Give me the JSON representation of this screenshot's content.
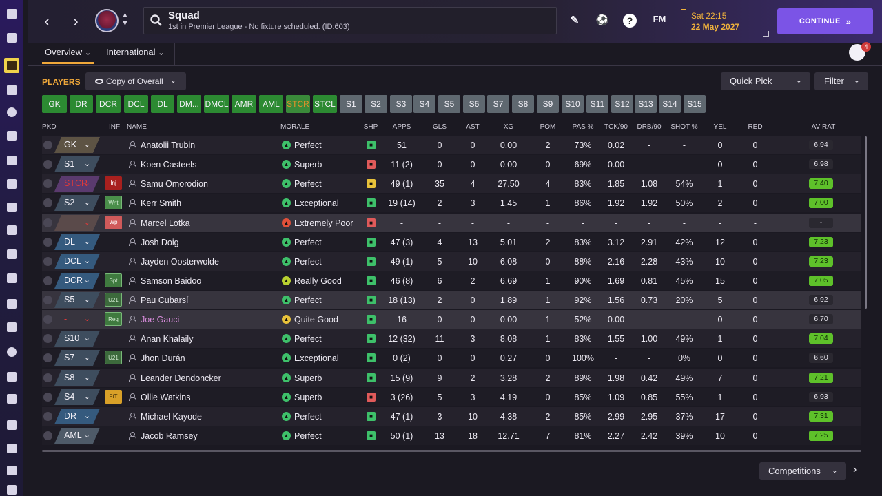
{
  "header": {
    "title": "Squad",
    "subtitle": "1st in Premier League - No fixture scheduled. (ID:603)",
    "fm_label": "FM",
    "help_label": "?",
    "date_day": "Sat 22:15",
    "date_date": "22 May 2027",
    "continue_label": "CONTINUE",
    "continue_chevron": "»",
    "back_arrow": "‹",
    "forward_arrow": "›",
    "badge_arrows": "⌃⌄"
  },
  "subtabs": [
    {
      "label": "Overview",
      "chevron": "⌄"
    },
    {
      "label": "International",
      "chevron": "⌄"
    }
  ],
  "notifications": {
    "count": "4"
  },
  "panel": {
    "players_label": "PLAYERS",
    "view_label": "Copy of Overall",
    "quick_pick_label": "Quick Pick",
    "filter_label": "Filter",
    "competitions_label": "Competitions",
    "chevron": "⌄",
    "next_arrow": "›"
  },
  "position_buttons": [
    {
      "label": "GK",
      "style": "green"
    },
    {
      "label": "DR",
      "style": "green"
    },
    {
      "label": "DCR",
      "style": "green"
    },
    {
      "label": "DCL",
      "style": "green"
    },
    {
      "label": "DL",
      "style": "green"
    },
    {
      "label": "DM...",
      "style": "green"
    },
    {
      "label": "DMCL",
      "style": "green"
    },
    {
      "label": "AMR",
      "style": "green"
    },
    {
      "label": "AML",
      "style": "green"
    },
    {
      "label": "STCR",
      "style": "sel"
    },
    {
      "label": "STCL",
      "style": "green"
    },
    {
      "label": "S1",
      "style": "grey"
    },
    {
      "label": "S2",
      "style": "grey"
    },
    {
      "label": "S3",
      "style": "grey"
    },
    {
      "label": "S4",
      "style": "grey"
    },
    {
      "label": "S5",
      "style": "grey"
    },
    {
      "label": "S6",
      "style": "grey"
    },
    {
      "label": "S7",
      "style": "grey"
    },
    {
      "label": "S8",
      "style": "grey"
    },
    {
      "label": "S9",
      "style": "grey"
    },
    {
      "label": "S10",
      "style": "grey"
    },
    {
      "label": "S11",
      "style": "grey"
    },
    {
      "label": "S12",
      "style": "grey"
    },
    {
      "label": "S13",
      "style": "grey"
    },
    {
      "label": "S14",
      "style": "grey"
    },
    {
      "label": "S15",
      "style": "grey"
    }
  ],
  "columns": {
    "pkd": "PKD",
    "inf": "INF",
    "name": "NAME",
    "morale": "MORALE",
    "shp": "SHP",
    "apps": "APPS",
    "gls": "GLS",
    "ast": "AST",
    "xg": "XG",
    "pom": "POM",
    "pas": "PAS %",
    "tck": "TCK/90",
    "drb": "DRB/90",
    "shot": "SHOT %",
    "yel": "YEL",
    "red": "RED",
    "avrat": "AV RAT"
  },
  "colors": {
    "accent_orange": "#f0a83a",
    "continue_purple": "#7b54e6",
    "rating_green": "#5ec12a",
    "morale_green": "#3ec06a",
    "injury_red": "#a8201e"
  },
  "players": [
    {
      "pos": "GK",
      "pos_style": "gk",
      "inf": "",
      "name": "Anatolii Trubin",
      "morale": "Perfect",
      "morale_color": "#3ec06a",
      "shp_color": "#3ec06a",
      "apps": "51",
      "gls": "0",
      "ast": "0",
      "xg": "0.00",
      "pom": "2",
      "pas": "73%",
      "tck": "0.02",
      "drb": "-",
      "shot": "-",
      "yel": "0",
      "red": "0",
      "rating": "6.94",
      "rating_style": "dark"
    },
    {
      "pos": "S1",
      "pos_style": "mid",
      "inf": "",
      "name": "Koen Casteels",
      "morale": "Superb",
      "morale_color": "#3ec06a",
      "shp_color": "#e05a5a",
      "apps": "11 (2)",
      "gls": "0",
      "ast": "0",
      "xg": "0.00",
      "pom": "0",
      "pas": "69%",
      "tck": "0.00",
      "drb": "-",
      "shot": "-",
      "yel": "0",
      "red": "0",
      "rating": "6.98",
      "rating_style": "dark"
    },
    {
      "pos": "STCR",
      "pos_style": "red",
      "inf": "Inj",
      "inf_style": "inj",
      "name": "Samu Omorodion",
      "morale": "Perfect",
      "morale_color": "#3ec06a",
      "shp_color": "#e8c23a",
      "apps": "49 (1)",
      "gls": "35",
      "ast": "4",
      "xg": "27.50",
      "pom": "4",
      "pas": "83%",
      "tck": "1.85",
      "drb": "1.08",
      "shot": "54%",
      "yel": "1",
      "red": "0",
      "rating": "7.40",
      "rating_style": "green"
    },
    {
      "pos": "S2",
      "pos_style": "mid",
      "inf": "Wnt",
      "inf_style": "wnt",
      "name": "Kerr Smith",
      "morale": "Exceptional",
      "morale_color": "#3ec06a",
      "shp_color": "#3ec06a",
      "apps": "19 (14)",
      "gls": "2",
      "ast": "3",
      "xg": "1.45",
      "pom": "1",
      "pas": "86%",
      "tck": "1.92",
      "drb": "1.92",
      "shot": "50%",
      "yel": "2",
      "red": "0",
      "rating": "7.00",
      "rating_style": "green"
    },
    {
      "pos": "-",
      "pos_style": "none",
      "inf": "Wp",
      "inf_style": "wp",
      "name": "Marcel Lotka",
      "morale": "Extremely Poor",
      "morale_color": "#e0503a",
      "shp_color": "#e05a5a",
      "apps": "-",
      "gls": "-",
      "ast": "-",
      "xg": "-",
      "pom": "-",
      "pas": "-",
      "tck": "-",
      "drb": "-",
      "shot": "-",
      "yel": "-",
      "red": "-",
      "rating": "-",
      "rating_style": "dark",
      "row_style": "hl"
    },
    {
      "pos": "DL",
      "pos_style": "def",
      "inf": "",
      "name": "Josh Doig",
      "morale": "Perfect",
      "morale_color": "#3ec06a",
      "shp_color": "#3ec06a",
      "apps": "47 (3)",
      "gls": "4",
      "ast": "13",
      "xg": "5.01",
      "pom": "2",
      "pas": "83%",
      "tck": "3.12",
      "drb": "2.91",
      "shot": "42%",
      "yel": "12",
      "red": "0",
      "rating": "7.23",
      "rating_style": "green"
    },
    {
      "pos": "DCL",
      "pos_style": "def",
      "inf": "",
      "name": "Jayden Oosterwolde",
      "morale": "Perfect",
      "morale_color": "#3ec06a",
      "shp_color": "#3ec06a",
      "apps": "49 (1)",
      "gls": "5",
      "ast": "10",
      "xg": "6.08",
      "pom": "0",
      "pas": "88%",
      "tck": "2.16",
      "drb": "2.28",
      "shot": "43%",
      "yel": "10",
      "red": "0",
      "rating": "7.23",
      "rating_style": "green"
    },
    {
      "pos": "DCR",
      "pos_style": "def",
      "inf": "Spt",
      "inf_style": "spt",
      "name": "Samson Baidoo",
      "morale": "Really Good",
      "morale_color": "#b8d030",
      "shp_color": "#3ec06a",
      "apps": "46 (8)",
      "gls": "6",
      "ast": "2",
      "xg": "6.69",
      "pom": "1",
      "pas": "90%",
      "tck": "1.69",
      "drb": "0.81",
      "shot": "45%",
      "yel": "15",
      "red": "0",
      "rating": "7.05",
      "rating_style": "green"
    },
    {
      "pos": "S5",
      "pos_style": "mid",
      "inf": "U21",
      "inf_style": "u21",
      "name": "Pau Cubarsí",
      "morale": "Perfect",
      "morale_color": "#3ec06a",
      "shp_color": "#3ec06a",
      "apps": "18 (13)",
      "gls": "2",
      "ast": "0",
      "xg": "1.89",
      "pom": "1",
      "pas": "92%",
      "tck": "1.56",
      "drb": "0.73",
      "shot": "20%",
      "yel": "5",
      "red": "0",
      "rating": "6.92",
      "rating_style": "dark",
      "row_style": "hl"
    },
    {
      "pos": "-",
      "pos_style": "none2",
      "inf": "Req",
      "inf_style": "req",
      "name": "Joe Gauci",
      "name_color": "#d48ad8",
      "morale": "Quite Good",
      "morale_color": "#e8c23a",
      "shp_color": "#3ec06a",
      "apps": "16",
      "gls": "0",
      "ast": "0",
      "xg": "0.00",
      "pom": "1",
      "pas": "52%",
      "tck": "0.00",
      "drb": "-",
      "shot": "-",
      "yel": "0",
      "red": "0",
      "rating": "6.70",
      "rating_style": "dark",
      "row_style": "hl"
    },
    {
      "pos": "S10",
      "pos_style": "mid",
      "inf": "",
      "name": "Anan Khalaily",
      "morale": "Perfect",
      "morale_color": "#3ec06a",
      "shp_color": "#3ec06a",
      "apps": "12 (32)",
      "gls": "11",
      "ast": "3",
      "xg": "8.08",
      "pom": "1",
      "pas": "83%",
      "tck": "1.55",
      "drb": "1.00",
      "shot": "49%",
      "yel": "1",
      "red": "0",
      "rating": "7.04",
      "rating_style": "green"
    },
    {
      "pos": "S7",
      "pos_style": "mid",
      "inf": "U21",
      "inf_style": "u21",
      "name": "Jhon Durán",
      "morale": "Exceptional",
      "morale_color": "#3ec06a",
      "shp_color": "#3ec06a",
      "apps": "0 (2)",
      "gls": "0",
      "ast": "0",
      "xg": "0.27",
      "pom": "0",
      "pas": "100%",
      "tck": "-",
      "drb": "-",
      "shot": "0%",
      "yel": "0",
      "red": "0",
      "rating": "6.60",
      "rating_style": "dark"
    },
    {
      "pos": "S8",
      "pos_style": "mid",
      "inf": "",
      "name": "Leander Dendoncker",
      "morale": "Superb",
      "morale_color": "#3ec06a",
      "shp_color": "#3ec06a",
      "apps": "15 (9)",
      "gls": "9",
      "ast": "2",
      "xg": "3.28",
      "pom": "2",
      "pas": "89%",
      "tck": "1.98",
      "drb": "0.42",
      "shot": "49%",
      "yel": "7",
      "red": "0",
      "rating": "7.21",
      "rating_style": "green"
    },
    {
      "pos": "S4",
      "pos_style": "mid",
      "inf": "FtT",
      "inf_style": "ftt",
      "name": "Ollie Watkins",
      "morale": "Superb",
      "morale_color": "#3ec06a",
      "shp_color": "#e05a5a",
      "apps": "3 (26)",
      "gls": "5",
      "ast": "3",
      "xg": "4.19",
      "pom": "0",
      "pas": "85%",
      "tck": "1.09",
      "drb": "0.85",
      "shot": "55%",
      "yel": "1",
      "red": "0",
      "rating": "6.93",
      "rating_style": "dark"
    },
    {
      "pos": "DR",
      "pos_style": "def",
      "inf": "",
      "name": "Michael Kayode",
      "morale": "Perfect",
      "morale_color": "#3ec06a",
      "shp_color": "#3ec06a",
      "apps": "47 (1)",
      "gls": "3",
      "ast": "10",
      "xg": "4.38",
      "pom": "2",
      "pas": "85%",
      "tck": "2.99",
      "drb": "2.95",
      "shot": "37%",
      "yel": "17",
      "red": "0",
      "rating": "7.31",
      "rating_style": "green"
    },
    {
      "pos": "AML",
      "pos_style": "att",
      "inf": "",
      "name": "Jacob Ramsey",
      "morale": "Perfect",
      "morale_color": "#3ec06a",
      "shp_color": "#3ec06a",
      "apps": "50 (1)",
      "gls": "13",
      "ast": "18",
      "xg": "12.71",
      "pom": "7",
      "pas": "81%",
      "tck": "2.27",
      "drb": "2.42",
      "shot": "39%",
      "yel": "10",
      "red": "0",
      "rating": "7.25",
      "rating_style": "green"
    }
  ]
}
